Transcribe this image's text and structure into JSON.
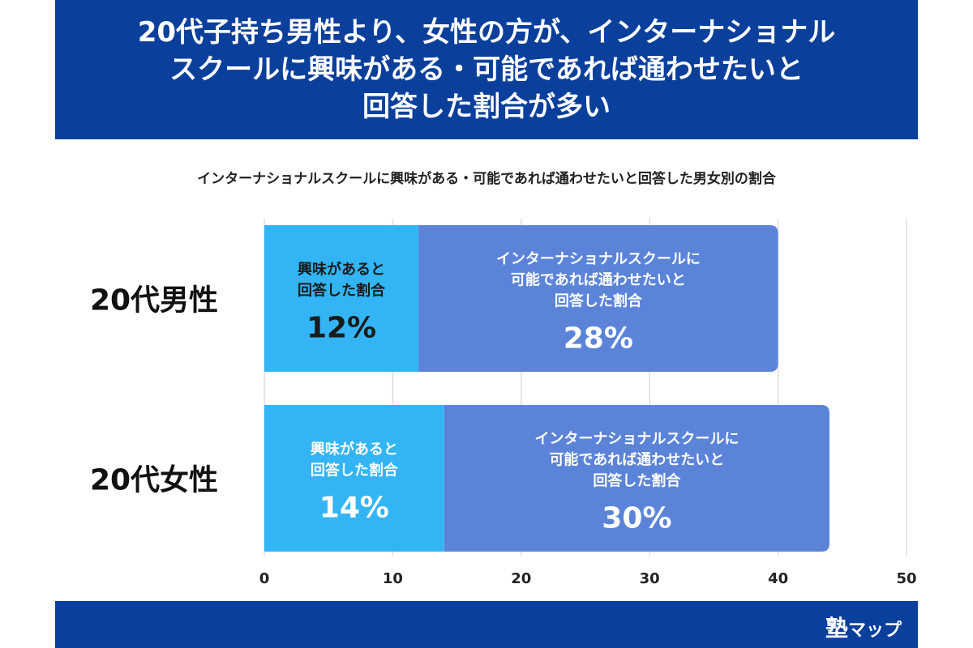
{
  "header": {
    "title_lines": [
      "20代子持ち男性より、女性の方が、インターナショナル",
      "スクールに興味がある・可能であれば通わせたいと",
      "回答した割合が多い"
    ]
  },
  "chart_data": {
    "type": "bar",
    "orientation": "horizontal",
    "stacked": true,
    "title": "インターナショナルスクールに興味がある・可能であれば通わせたいと回答した男女別の割合",
    "categories": [
      "20代男性",
      "20代女性"
    ],
    "series": [
      {
        "label_lines": [
          "興味があると",
          "回答した割合"
        ],
        "values": [
          12,
          14
        ],
        "value_labels": [
          "12%",
          "14%"
        ],
        "color": "#33b5f5"
      },
      {
        "label_lines": [
          "インターナショナルスクールに",
          "可能であれば通わせたいと",
          "回答した割合"
        ],
        "values": [
          28,
          30
        ],
        "value_labels": [
          "28%",
          "30%"
        ],
        "color": "#5b84d9"
      }
    ],
    "xlim": [
      0,
      50
    ],
    "xticks": [
      "0",
      "10",
      "20",
      "30",
      "40",
      "50"
    ],
    "grid": true
  },
  "footer": {
    "logo_main": "塾",
    "logo_sub": "マップ"
  }
}
